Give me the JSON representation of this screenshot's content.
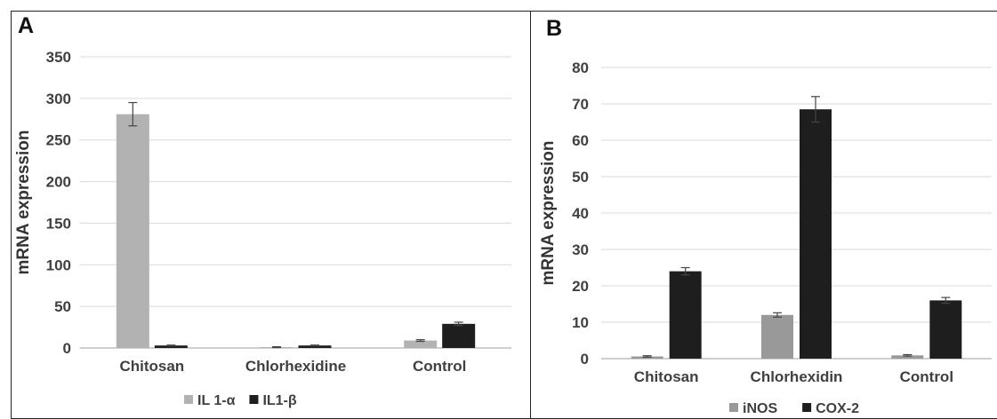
{
  "colors": {
    "light": "#b2b2b2",
    "light_b": "#999999",
    "dark": "#1e1e1e",
    "grid": "#d9d9d9",
    "axis": "#bfbfbf"
  },
  "chart_data": [
    {
      "type": "bar",
      "panel_label": "A",
      "categories": [
        "Chitosan",
        "Chlorhexidine",
        "Control"
      ],
      "ylabel": "mRNA expression",
      "ylim": [
        0,
        350
      ],
      "yticks": [
        0,
        50,
        100,
        150,
        200,
        250,
        300,
        350
      ],
      "grid": true,
      "legend": "bottom",
      "series": [
        {
          "name": "IL 1-α",
          "values": [
            281,
            1,
            9
          ],
          "errors": [
            14,
            0.5,
            1
          ],
          "color": "#b2b2b2"
        },
        {
          "name": "IL1-β",
          "values": [
            3,
            3,
            29
          ],
          "errors": [
            0.5,
            0.5,
            2
          ],
          "color": "#1e1e1e"
        }
      ]
    },
    {
      "type": "bar",
      "panel_label": "B",
      "categories": [
        "Chitosan",
        "Chlorhexidin",
        "Control"
      ],
      "ylabel": "mRNA expression",
      "ylim": [
        0,
        80
      ],
      "yticks": [
        0,
        10,
        20,
        30,
        40,
        50,
        60,
        70,
        80
      ],
      "grid": true,
      "legend": "bottom",
      "series": [
        {
          "name": "iNOS",
          "values": [
            0.6,
            12,
            0.9
          ],
          "errors": [
            0.2,
            0.6,
            0.2
          ],
          "color": "#999999"
        },
        {
          "name": "COX-2",
          "values": [
            24,
            68.5,
            16
          ],
          "errors": [
            1,
            3.5,
            0.8
          ],
          "color": "#1e1e1e"
        }
      ]
    }
  ]
}
